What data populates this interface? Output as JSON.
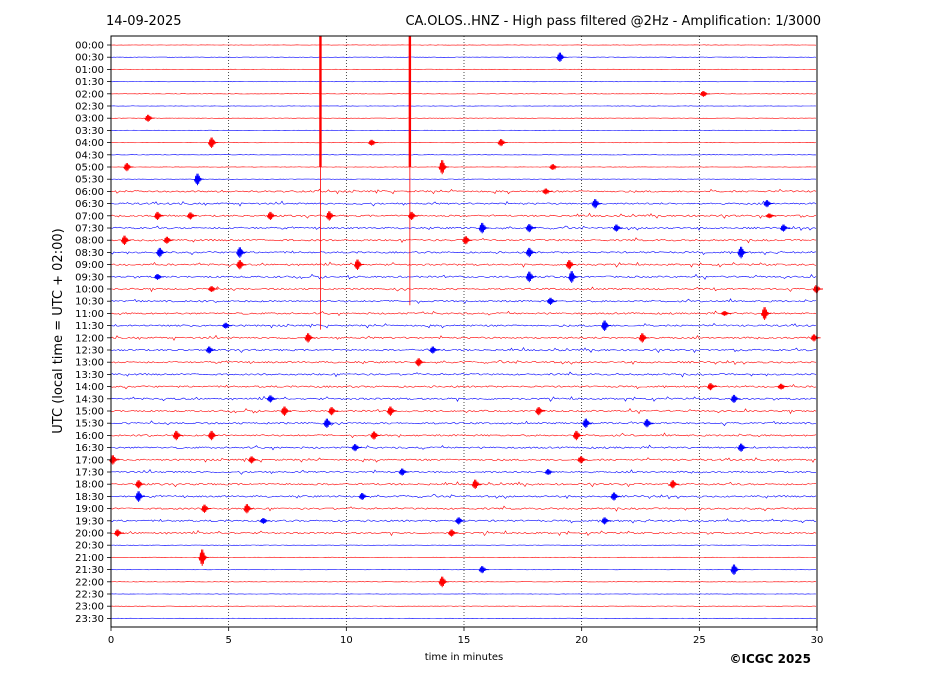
{
  "header": {
    "date": "14-09-2025",
    "title": "CA.OLOS..HNZ - High pass filtered @2Hz - Amplification: 1/3000"
  },
  "footer": {
    "copyright": "©ICGC 2025"
  },
  "colors": {
    "odd_rows": "#ff0000",
    "even_rows": "#0000ff",
    "grid": "#000000"
  },
  "chart_data": {
    "type": "line",
    "title": "CA.OLOS..HNZ - High pass filtered @2Hz - Amplification: 1/3000",
    "xlabel": "time in minutes",
    "ylabel": "UTC (local time = UTC + 02:00)",
    "xlim": [
      0,
      30
    ],
    "x_ticks": [
      0,
      5,
      10,
      15,
      20,
      25,
      30
    ],
    "grid_x": [
      5,
      10,
      15,
      20,
      25
    ],
    "y_tick_labels": [
      "00:00",
      "00:30",
      "01:00",
      "01:30",
      "02:00",
      "02:30",
      "03:00",
      "03:30",
      "04:00",
      "04:30",
      "05:00",
      "05:30",
      "06:00",
      "06:30",
      "07:00",
      "07:30",
      "08:00",
      "08:30",
      "09:00",
      "09:30",
      "10:00",
      "10:30",
      "11:00",
      "11:30",
      "12:00",
      "12:30",
      "13:00",
      "13:30",
      "14:00",
      "14:30",
      "15:00",
      "15:30",
      "16:00",
      "16:30",
      "17:00",
      "17:30",
      "18:00",
      "18:30",
      "19:00",
      "19:30",
      "20:00",
      "20:30",
      "21:00",
      "21:30",
      "22:00",
      "22:30",
      "23:00",
      "23:30"
    ],
    "row_colors": [
      "red",
      "blue"
    ],
    "events": [
      {
        "row": 1,
        "minute": 19.1,
        "amp": 0.8
      },
      {
        "row": 4,
        "minute": 25.2,
        "amp": 0.5
      },
      {
        "row": 6,
        "minute": 1.6,
        "amp": 0.6
      },
      {
        "row": 8,
        "minute": 4.3,
        "amp": 0.9
      },
      {
        "row": 8,
        "minute": 11.1,
        "amp": 0.5
      },
      {
        "row": 8,
        "minute": 16.6,
        "amp": 0.6
      },
      {
        "row": 10,
        "minute": 0.7,
        "amp": 0.7
      },
      {
        "row": 10,
        "minute": 14.1,
        "amp": 1.2
      },
      {
        "row": 10,
        "minute": 18.8,
        "amp": 0.5
      },
      {
        "row": 11,
        "minute": 3.7,
        "amp": 1.0
      },
      {
        "row": 12,
        "minute": 18.5,
        "amp": 0.5
      },
      {
        "row": 13,
        "minute": 20.6,
        "amp": 0.8
      },
      {
        "row": 13,
        "minute": 27.9,
        "amp": 0.6
      },
      {
        "row": 14,
        "minute": 2.0,
        "amp": 0.7
      },
      {
        "row": 14,
        "minute": 3.4,
        "amp": 0.6
      },
      {
        "row": 14,
        "minute": 6.8,
        "amp": 0.7
      },
      {
        "row": 14,
        "minute": 9.3,
        "amp": 0.8
      },
      {
        "row": 14,
        "minute": 12.8,
        "amp": 0.7
      },
      {
        "row": 14,
        "minute": 28.0,
        "amp": 0.4
      },
      {
        "row": 15,
        "minute": 15.8,
        "amp": 0.9
      },
      {
        "row": 15,
        "minute": 17.8,
        "amp": 0.7
      },
      {
        "row": 15,
        "minute": 21.5,
        "amp": 0.6
      },
      {
        "row": 15,
        "minute": 28.6,
        "amp": 0.6
      },
      {
        "row": 16,
        "minute": 0.6,
        "amp": 0.8
      },
      {
        "row": 16,
        "minute": 2.4,
        "amp": 0.6
      },
      {
        "row": 16,
        "minute": 15.1,
        "amp": 0.7
      },
      {
        "row": 17,
        "minute": 2.1,
        "amp": 0.8
      },
      {
        "row": 17,
        "minute": 5.5,
        "amp": 0.9
      },
      {
        "row": 17,
        "minute": 17.8,
        "amp": 0.8
      },
      {
        "row": 17,
        "minute": 26.8,
        "amp": 1.0
      },
      {
        "row": 18,
        "minute": 5.5,
        "amp": 0.8
      },
      {
        "row": 18,
        "minute": 10.5,
        "amp": 0.9
      },
      {
        "row": 18,
        "minute": 19.5,
        "amp": 0.8
      },
      {
        "row": 19,
        "minute": 2.0,
        "amp": 0.5
      },
      {
        "row": 19,
        "minute": 17.8,
        "amp": 0.9
      },
      {
        "row": 19,
        "minute": 19.6,
        "amp": 1.0
      },
      {
        "row": 20,
        "minute": 4.3,
        "amp": 0.5
      },
      {
        "row": 20,
        "minute": 30.0,
        "amp": 0.7
      },
      {
        "row": 21,
        "minute": 18.7,
        "amp": 0.6
      },
      {
        "row": 22,
        "minute": 26.1,
        "amp": 0.4
      },
      {
        "row": 22,
        "minute": 27.8,
        "amp": 1.1
      },
      {
        "row": 23,
        "minute": 4.9,
        "amp": 0.5
      },
      {
        "row": 23,
        "minute": 21.0,
        "amp": 0.9
      },
      {
        "row": 24,
        "minute": 8.4,
        "amp": 0.8
      },
      {
        "row": 24,
        "minute": 22.6,
        "amp": 0.8
      },
      {
        "row": 24,
        "minute": 29.9,
        "amp": 0.6
      },
      {
        "row": 25,
        "minute": 4.2,
        "amp": 0.6
      },
      {
        "row": 25,
        "minute": 13.7,
        "amp": 0.6
      },
      {
        "row": 26,
        "minute": 13.1,
        "amp": 0.7
      },
      {
        "row": 28,
        "minute": 25.5,
        "amp": 0.6
      },
      {
        "row": 28,
        "minute": 28.5,
        "amp": 0.5
      },
      {
        "row": 29,
        "minute": 6.8,
        "amp": 0.6
      },
      {
        "row": 29,
        "minute": 26.5,
        "amp": 0.7
      },
      {
        "row": 30,
        "minute": 7.4,
        "amp": 0.8
      },
      {
        "row": 30,
        "minute": 9.4,
        "amp": 0.7
      },
      {
        "row": 30,
        "minute": 11.9,
        "amp": 0.8
      },
      {
        "row": 30,
        "minute": 18.2,
        "amp": 0.7
      },
      {
        "row": 31,
        "minute": 9.2,
        "amp": 0.8
      },
      {
        "row": 31,
        "minute": 20.2,
        "amp": 0.8
      },
      {
        "row": 31,
        "minute": 22.8,
        "amp": 0.7
      },
      {
        "row": 32,
        "minute": 2.8,
        "amp": 0.8
      },
      {
        "row": 32,
        "minute": 4.3,
        "amp": 0.8
      },
      {
        "row": 32,
        "minute": 11.2,
        "amp": 0.7
      },
      {
        "row": 32,
        "minute": 19.8,
        "amp": 0.8
      },
      {
        "row": 33,
        "minute": 10.4,
        "amp": 0.6
      },
      {
        "row": 33,
        "minute": 26.8,
        "amp": 0.7
      },
      {
        "row": 34,
        "minute": 0.1,
        "amp": 0.8
      },
      {
        "row": 34,
        "minute": 6.0,
        "amp": 0.6
      },
      {
        "row": 34,
        "minute": 20.0,
        "amp": 0.6
      },
      {
        "row": 35,
        "minute": 12.4,
        "amp": 0.6
      },
      {
        "row": 35,
        "minute": 18.6,
        "amp": 0.5
      },
      {
        "row": 36,
        "minute": 1.2,
        "amp": 0.7
      },
      {
        "row": 36,
        "minute": 15.5,
        "amp": 0.8
      },
      {
        "row": 36,
        "minute": 23.9,
        "amp": 0.7
      },
      {
        "row": 37,
        "minute": 1.2,
        "amp": 0.9
      },
      {
        "row": 37,
        "minute": 10.7,
        "amp": 0.6
      },
      {
        "row": 37,
        "minute": 21.4,
        "amp": 0.7
      },
      {
        "row": 38,
        "minute": 4.0,
        "amp": 0.7
      },
      {
        "row": 38,
        "minute": 5.8,
        "amp": 0.8
      },
      {
        "row": 39,
        "minute": 6.5,
        "amp": 0.5
      },
      {
        "row": 39,
        "minute": 14.8,
        "amp": 0.6
      },
      {
        "row": 39,
        "minute": 21.0,
        "amp": 0.6
      },
      {
        "row": 40,
        "minute": 0.3,
        "amp": 0.6
      },
      {
        "row": 40,
        "minute": 14.5,
        "amp": 0.6
      },
      {
        "row": 42,
        "minute": 3.9,
        "amp": 1.4
      },
      {
        "row": 43,
        "minute": 15.8,
        "amp": 0.6
      },
      {
        "row": 43,
        "minute": 26.5,
        "amp": 0.9
      },
      {
        "row": 44,
        "minute": 14.1,
        "amp": 0.9
      }
    ],
    "spikes": [
      {
        "minute": 8.9,
        "from_row": 0,
        "to_row": 23
      },
      {
        "minute": 12.7,
        "from_row": 0,
        "to_row": 21
      }
    ]
  }
}
